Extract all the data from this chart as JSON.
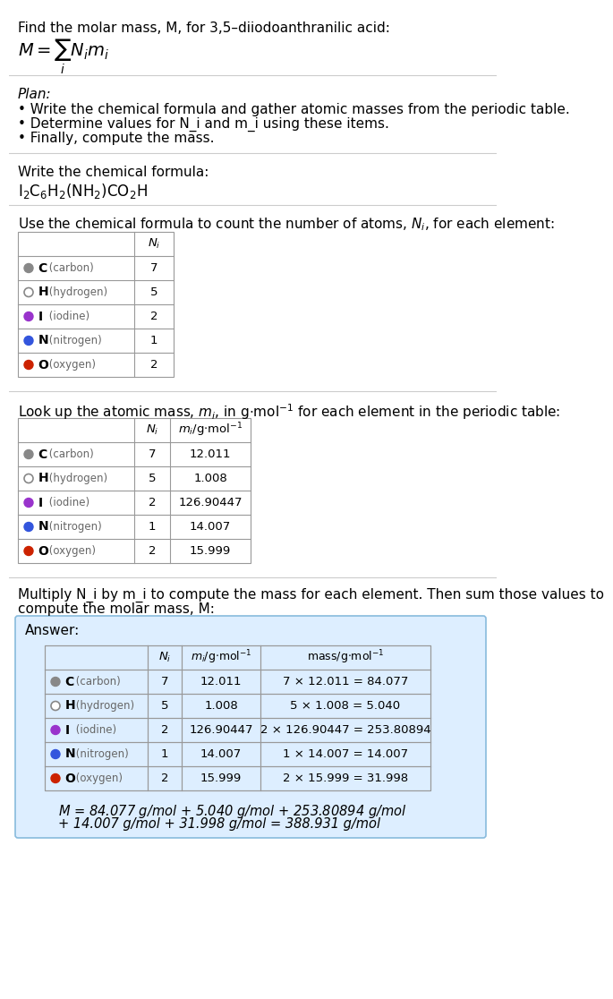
{
  "title_line1": "Find the molar mass, M, for 3,5–diiodoanthranilic acid:",
  "plan_header": "Plan:",
  "plan_bullets": [
    "• Write the chemical formula and gather atomic masses from the periodic table.",
    "• Determine values for N_i and m_i using these items.",
    "• Finally, compute the mass."
  ],
  "formula_header": "Write the chemical formula:",
  "count_header": "Use the chemical formula to count the number of atoms, N_i, for each element:",
  "lookup_header": "Look up the atomic mass, m_i, in g·mol⁻¹ for each element in the periodic table:",
  "multiply_header1": "Multiply N_i by m_i to compute the mass for each element. Then sum those values to",
  "multiply_header2": "compute the molar mass, M:",
  "elements": [
    "C (carbon)",
    "H (hydrogen)",
    "I (iodine)",
    "N (nitrogen)",
    "O (oxygen)"
  ],
  "element_symbols": [
    "C",
    "H",
    "I",
    "N",
    "O"
  ],
  "element_names": [
    " (carbon)",
    " (hydrogen)",
    " (iodine)",
    " (nitrogen)",
    " (oxygen)"
  ],
  "dot_colors": [
    "#888888",
    "white",
    "#9933cc",
    "#3355dd",
    "#cc2200"
  ],
  "dot_outline": [
    "#888888",
    "#888888",
    "#9933cc",
    "#3355dd",
    "#cc2200"
  ],
  "N_i": [
    "7",
    "5",
    "2",
    "1",
    "2"
  ],
  "m_i": [
    "12.011",
    "1.008",
    "126.90447",
    "14.007",
    "15.999"
  ],
  "mass_expr": [
    "7 × 12.011 = 84.077",
    "5 × 1.008 = 5.040",
    "2 × 126.90447 = 253.80894",
    "1 × 14.007 = 14.007",
    "2 × 15.999 = 31.998"
  ],
  "answer_label": "Answer:",
  "final_eq_line1": "M = 84.077 g/mol + 5.040 g/mol + 253.80894 g/mol",
  "final_eq_line2": "+ 14.007 g/mol + 31.998 g/mol = 388.931 g/mol",
  "bg_color": "#ffffff",
  "answer_bg": "#ddeeff",
  "table_border": "#999999",
  "sep_color": "#cccccc"
}
